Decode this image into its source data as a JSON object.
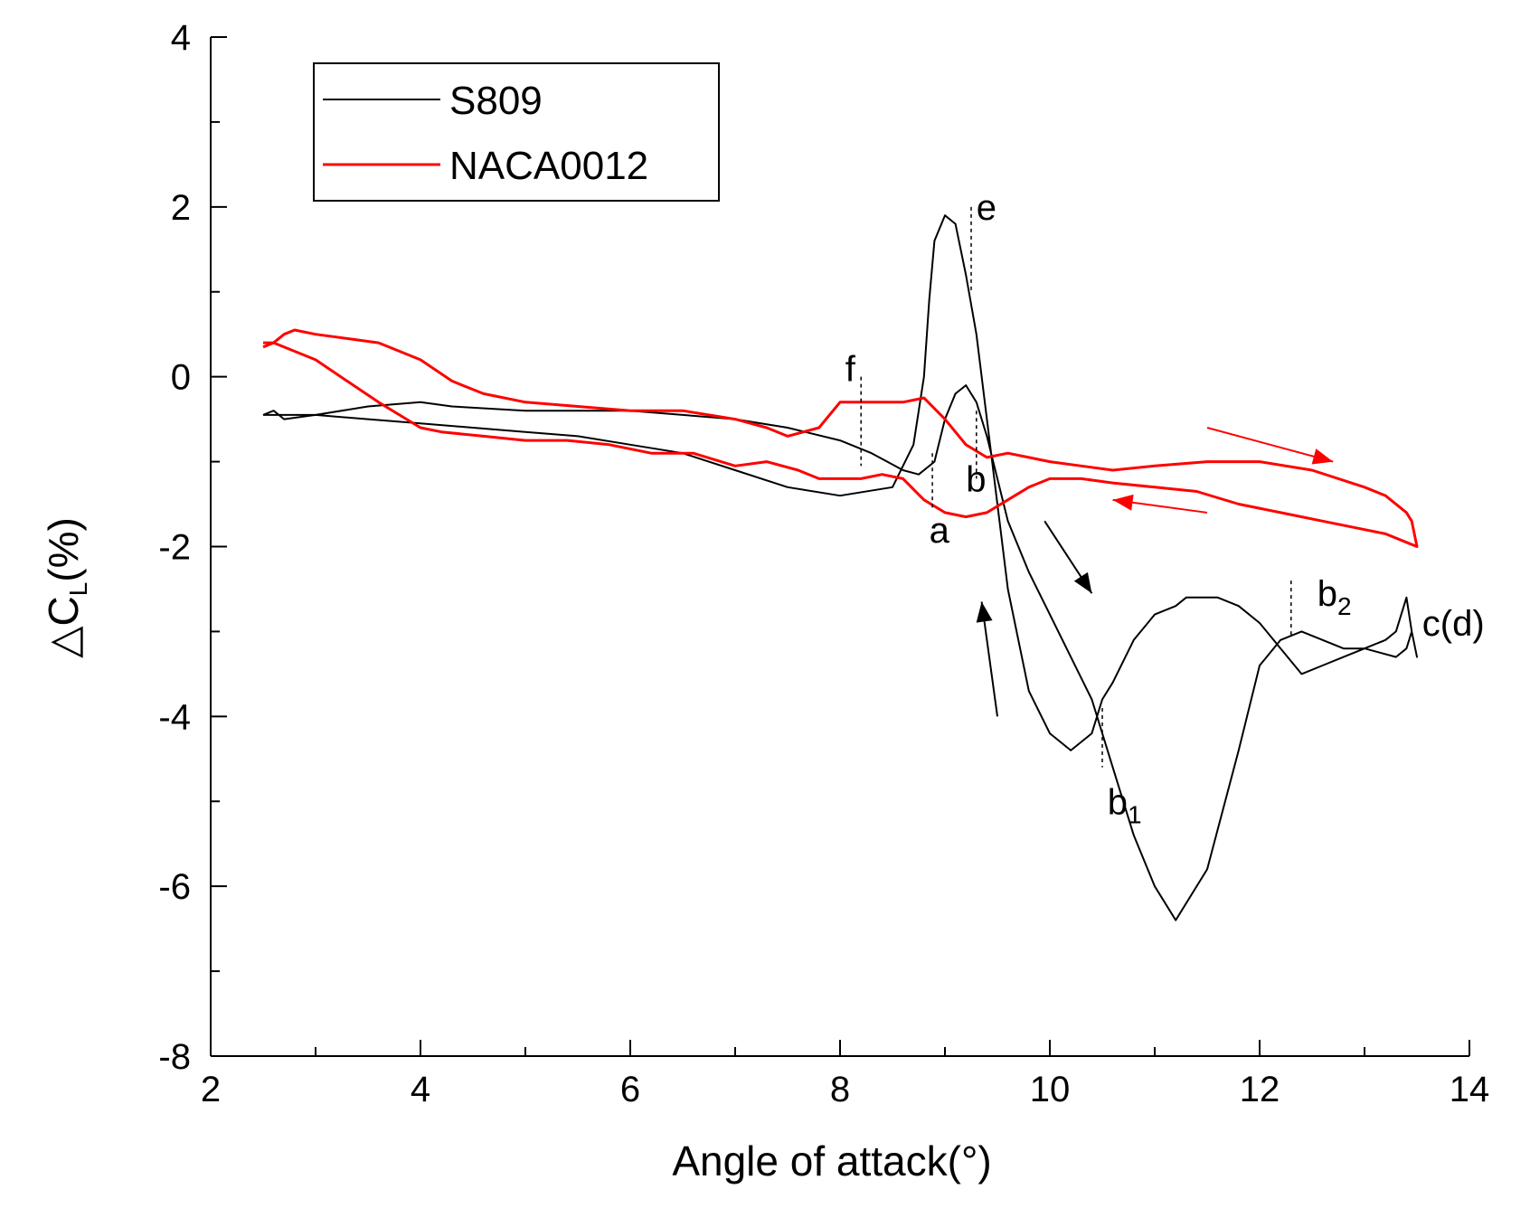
{
  "chart_data": {
    "type": "line",
    "title": "",
    "xlabel": "Angle of attack(°)",
    "ylabel": "△C",
    "ylabel_sub": "L",
    "ylabel_tail": "(%)",
    "xlim": [
      2,
      14
    ],
    "ylim": [
      -8,
      4
    ],
    "x_major_ticks": [
      2,
      4,
      6,
      8,
      10,
      12,
      14
    ],
    "y_major_ticks": [
      -8,
      -6,
      -4,
      -2,
      0,
      2,
      4
    ],
    "x_tick_labels": [
      "2",
      "4",
      "6",
      "8",
      "10",
      "12",
      "14"
    ],
    "y_tick_labels": [
      "-8",
      "-6",
      "-4",
      "-2",
      "0",
      "2",
      "4"
    ],
    "legend_position": "top-left",
    "series": [
      {
        "name": "S809",
        "color": "#000000",
        "x": [
          2.5,
          2.6,
          2.7,
          3.0,
          3.5,
          4.0,
          4.3,
          5.0,
          5.5,
          6.0,
          6.5,
          7.0,
          7.5,
          8.0,
          8.3,
          8.6,
          8.75,
          8.9,
          9.0,
          9.1,
          9.2,
          9.3,
          9.4,
          9.5,
          9.6,
          9.8,
          10.0,
          10.2,
          10.4,
          10.6,
          10.8,
          11.0,
          11.2,
          11.5,
          11.8,
          12.0,
          12.2,
          12.4,
          12.6,
          12.8,
          13.0,
          13.2,
          13.3,
          13.4,
          13.45,
          13.5,
          13.45,
          13.4,
          13.3,
          13.0,
          12.8,
          12.6,
          12.4,
          12.2,
          12.0,
          11.8,
          11.6,
          11.5,
          11.4,
          11.3,
          11.2,
          11.0,
          10.8,
          10.6,
          10.5,
          10.4,
          10.2,
          10.0,
          9.8,
          9.6,
          9.5,
          9.4,
          9.3,
          9.2,
          9.15,
          9.1,
          9.0,
          8.9,
          8.85,
          8.8,
          8.7,
          8.5,
          8.0,
          7.5,
          7.0,
          6.5,
          6.0,
          5.5,
          5.0,
          4.5,
          4.0,
          3.5,
          3.0,
          2.6,
          2.5
        ],
        "y": [
          -0.45,
          -0.4,
          -0.5,
          -0.45,
          -0.35,
          -0.3,
          -0.35,
          -0.4,
          -0.4,
          -0.4,
          -0.45,
          -0.5,
          -0.6,
          -0.75,
          -0.9,
          -1.1,
          -1.15,
          -1.0,
          -0.5,
          -0.2,
          -0.1,
          -0.3,
          -0.7,
          -1.2,
          -1.7,
          -2.3,
          -2.8,
          -3.3,
          -3.8,
          -4.6,
          -5.4,
          -6.0,
          -6.4,
          -5.8,
          -4.4,
          -3.4,
          -3.1,
          -3.0,
          -3.1,
          -3.2,
          -3.2,
          -3.1,
          -3.0,
          -2.6,
          -3.0,
          -3.3,
          -3.0,
          -3.2,
          -3.3,
          -3.2,
          -3.3,
          -3.4,
          -3.5,
          -3.2,
          -2.9,
          -2.7,
          -2.6,
          -2.6,
          -2.6,
          -2.6,
          -2.7,
          -2.8,
          -3.1,
          -3.6,
          -3.8,
          -4.2,
          -4.4,
          -4.2,
          -3.7,
          -2.5,
          -1.5,
          -0.5,
          0.5,
          1.2,
          1.5,
          1.8,
          1.9,
          1.6,
          0.9,
          0.0,
          -0.8,
          -1.3,
          -1.4,
          -1.3,
          -1.1,
          -0.9,
          -0.8,
          -0.7,
          -0.65,
          -0.6,
          -0.55,
          -0.5,
          -0.45,
          -0.45,
          -0.45
        ]
      },
      {
        "name": "NACA0012",
        "color": "#ff0000",
        "x": [
          2.5,
          2.6,
          2.7,
          2.8,
          3.0,
          3.3,
          3.6,
          4.0,
          4.3,
          4.6,
          5.0,
          5.5,
          6.0,
          6.5,
          7.0,
          7.3,
          7.5,
          7.8,
          8.0,
          8.3,
          8.6,
          8.8,
          9.0,
          9.2,
          9.4,
          9.6,
          9.8,
          10.0,
          10.3,
          10.6,
          11.0,
          11.5,
          12.0,
          12.5,
          13.0,
          13.2,
          13.4,
          13.45,
          13.5,
          13.4,
          13.2,
          13.0,
          12.6,
          12.2,
          11.8,
          11.4,
          11.0,
          10.6,
          10.3,
          10.0,
          9.8,
          9.6,
          9.4,
          9.2,
          9.0,
          8.8,
          8.6,
          8.4,
          8.2,
          8.0,
          7.8,
          7.6,
          7.3,
          7.0,
          6.6,
          6.2,
          5.8,
          5.4,
          5.0,
          4.6,
          4.2,
          4.0,
          3.6,
          3.3,
          3.0,
          2.8,
          2.6,
          2.5
        ],
        "y": [
          0.35,
          0.4,
          0.5,
          0.55,
          0.5,
          0.45,
          0.4,
          0.2,
          -0.05,
          -0.2,
          -0.3,
          -0.35,
          -0.4,
          -0.4,
          -0.5,
          -0.6,
          -0.7,
          -0.6,
          -0.3,
          -0.3,
          -0.3,
          -0.25,
          -0.5,
          -0.8,
          -0.95,
          -0.9,
          -0.95,
          -1.0,
          -1.05,
          -1.1,
          -1.05,
          -1.0,
          -1.0,
          -1.1,
          -1.3,
          -1.4,
          -1.6,
          -1.7,
          -2.0,
          -1.95,
          -1.85,
          -1.8,
          -1.7,
          -1.6,
          -1.5,
          -1.35,
          -1.3,
          -1.25,
          -1.2,
          -1.2,
          -1.3,
          -1.45,
          -1.6,
          -1.65,
          -1.6,
          -1.45,
          -1.2,
          -1.15,
          -1.2,
          -1.2,
          -1.2,
          -1.1,
          -1.0,
          -1.05,
          -0.9,
          -0.9,
          -0.8,
          -0.75,
          -0.75,
          -0.7,
          -0.65,
          -0.6,
          -0.3,
          -0.05,
          0.2,
          0.3,
          0.4,
          0.4
        ]
      }
    ],
    "annotations": [
      {
        "text": "e",
        "sub": "",
        "x": 9.3,
        "y": 1.85
      },
      {
        "text": "f",
        "sub": "",
        "x": 8.05,
        "y": -0.05
      },
      {
        "text": "b",
        "sub": "",
        "x": 9.2,
        "y": -1.35
      },
      {
        "text": "a",
        "sub": "",
        "x": 8.85,
        "y": -1.95
      },
      {
        "text": "b",
        "sub": "1",
        "x": 10.55,
        "y": -5.15
      },
      {
        "text": "b",
        "sub": "2",
        "x": 12.55,
        "y": -2.7
      },
      {
        "text": "c(d)",
        "sub": "",
        "x": 13.55,
        "y": -3.05
      }
    ],
    "marker_lines": [
      {
        "x": 9.25,
        "y_from": 2.0,
        "y_to": 1.0
      },
      {
        "x": 8.2,
        "y_from": 0.0,
        "y_to": -1.05
      },
      {
        "x": 8.88,
        "y_from": -0.9,
        "y_to": -1.55
      },
      {
        "x": 9.3,
        "y_from": -0.4,
        "y_to": -1.2
      },
      {
        "x": 10.5,
        "y_from": -3.9,
        "y_to": -4.6
      },
      {
        "x": 12.3,
        "y_from": -2.4,
        "y_to": -3.05
      }
    ],
    "arrows": [
      {
        "color": "#ff0000",
        "from": [
          11.5,
          -0.6
        ],
        "to": [
          12.7,
          -1.0
        ]
      },
      {
        "color": "#ff0000",
        "from": [
          11.5,
          -1.6
        ],
        "to": [
          10.6,
          -1.45
        ]
      },
      {
        "color": "#000000",
        "from": [
          9.95,
          -1.7
        ],
        "to": [
          10.4,
          -2.55
        ]
      },
      {
        "color": "#000000",
        "from": [
          9.5,
          -4.0
        ],
        "to": [
          9.35,
          -2.65
        ]
      }
    ]
  }
}
